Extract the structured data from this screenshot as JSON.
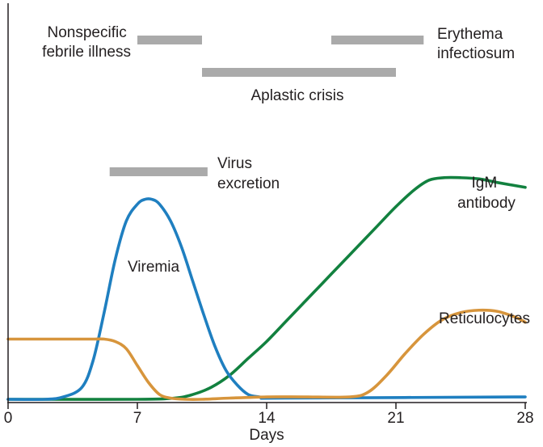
{
  "chart_data": {
    "type": "line",
    "title": "",
    "xlabel": "Days",
    "ylabel": "",
    "xlim": [
      0,
      28
    ],
    "ylim": [
      0,
      1
    ],
    "x_ticks": [
      0,
      7,
      14,
      21,
      28
    ],
    "x_tick_labels": [
      "0",
      "7",
      "14",
      "21",
      "28"
    ],
    "grid": false,
    "legend": "none",
    "series": [
      {
        "name": "Viremia",
        "color": "#1f7fc0",
        "x": [
          0,
          2,
          3,
          4,
          4.6,
          5.2,
          5.8,
          6.4,
          7,
          7.4,
          7.8,
          8.2,
          8.8,
          9.4,
          10,
          10.6,
          11.2,
          11.8,
          12.4,
          13,
          13.6,
          14,
          15,
          28
        ],
        "values": [
          0,
          0,
          0.01,
          0.05,
          0.16,
          0.36,
          0.58,
          0.74,
          0.81,
          0.83,
          0.83,
          0.81,
          0.74,
          0.63,
          0.49,
          0.35,
          0.22,
          0.12,
          0.06,
          0.02,
          0.01,
          0.005,
          0.005,
          0.01
        ]
      },
      {
        "name": "IgM antibody",
        "color": "#12813f",
        "x": [
          0,
          7,
          9,
          10,
          11,
          12,
          13,
          14,
          15,
          16,
          17,
          18,
          19,
          20,
          21,
          22,
          22.8,
          23.6,
          24.5,
          25.5,
          26.5,
          28
        ],
        "values": [
          0,
          0,
          0.005,
          0.02,
          0.05,
          0.1,
          0.17,
          0.24,
          0.32,
          0.4,
          0.48,
          0.56,
          0.64,
          0.72,
          0.8,
          0.87,
          0.91,
          0.92,
          0.92,
          0.915,
          0.9,
          0.88
        ]
      },
      {
        "name": "Reticulocytes",
        "color": "#d7953c",
        "x": [
          0,
          4,
          4.6,
          5.2,
          5.8,
          6.4,
          7,
          7.6,
          8.2,
          8.8,
          9.6,
          10.5,
          12,
          14,
          16,
          18.5,
          19.5,
          20.5,
          21.5,
          22.5,
          23.5,
          24.5,
          25.5,
          26.5,
          27.5,
          28
        ],
        "values": [
          0.25,
          0.25,
          0.25,
          0.25,
          0.24,
          0.21,
          0.14,
          0.07,
          0.02,
          0.005,
          0,
          0,
          0.005,
          0.01,
          0.01,
          0.01,
          0.03,
          0.1,
          0.19,
          0.27,
          0.33,
          0.36,
          0.37,
          0.365,
          0.34,
          0.32
        ]
      }
    ],
    "phase_bars": [
      {
        "start": 7,
        "end": 10.5,
        "level": "upper",
        "label": "Nonspecific febrile illness"
      },
      {
        "start": 17.5,
        "end": 22.5,
        "level": "upper",
        "label": "Erythema infectiosum"
      },
      {
        "start": 10.5,
        "end": 21,
        "level": "middle",
        "label": "Aplastic crisis"
      },
      {
        "start": 5.5,
        "end": 10.8,
        "level": "lower",
        "label": "Virus excretion"
      }
    ],
    "phase_bar_color": "#aaaaaa",
    "annotations": [
      {
        "lines": [
          "Nonspecific",
          "febrile illness"
        ]
      },
      {
        "lines": [
          "Erythema",
          "infectiosum"
        ]
      },
      {
        "lines": [
          "Aplastic crisis"
        ]
      },
      {
        "lines": [
          "Virus",
          "excretion"
        ]
      },
      {
        "lines": [
          "IgM",
          "antibody"
        ]
      },
      {
        "lines": [
          "Viremia"
        ]
      },
      {
        "lines": [
          "Reticulocytes"
        ]
      }
    ]
  }
}
